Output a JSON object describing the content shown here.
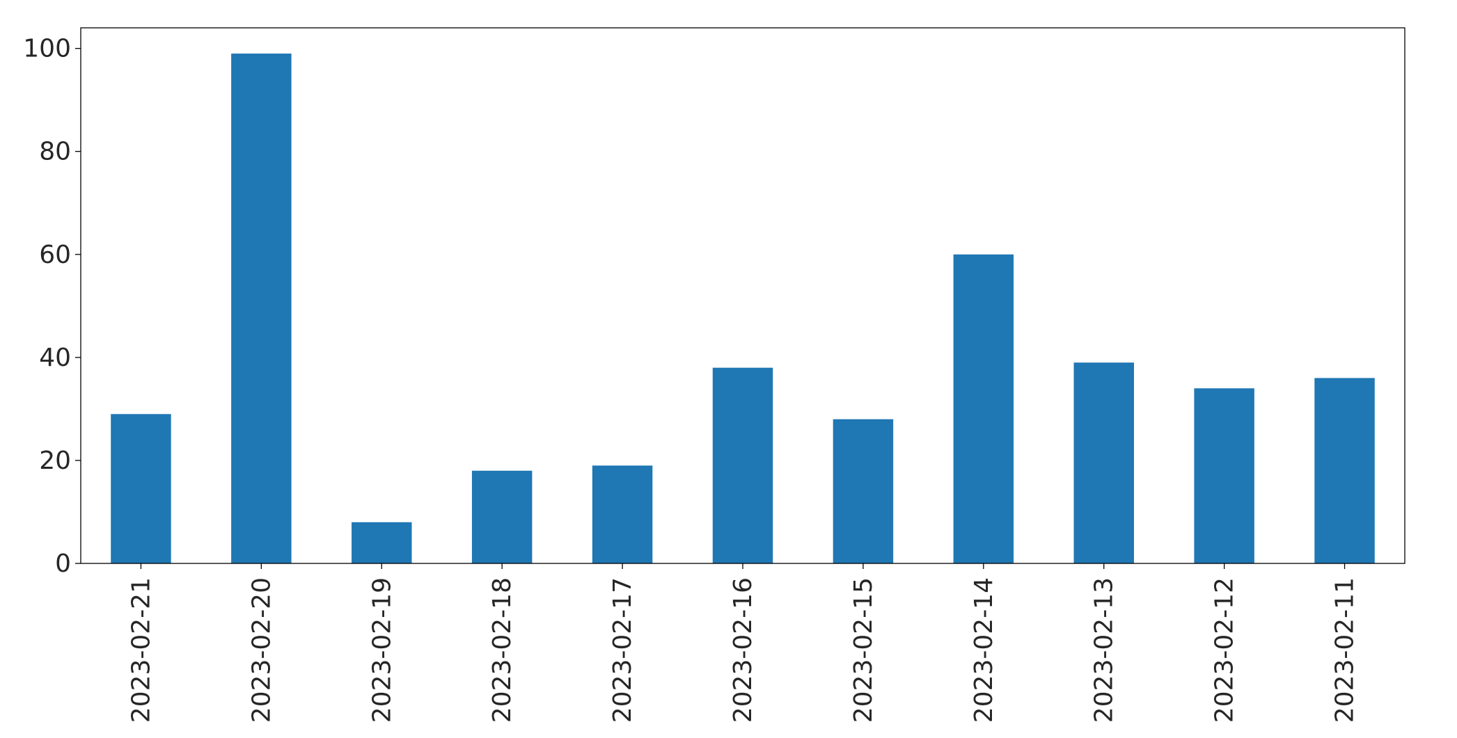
{
  "chart_data": {
    "type": "bar",
    "categories": [
      "2023-02-21",
      "2023-02-20",
      "2023-02-19",
      "2023-02-18",
      "2023-02-17",
      "2023-02-16",
      "2023-02-15",
      "2023-02-14",
      "2023-02-13",
      "2023-02-12",
      "2023-02-11"
    ],
    "values": [
      29,
      99,
      8,
      18,
      19,
      38,
      28,
      60,
      39,
      34,
      36
    ],
    "title": "",
    "xlabel": "",
    "ylabel": "",
    "ylim": [
      0,
      104
    ],
    "yticks": [
      0,
      20,
      40,
      60,
      80,
      100
    ],
    "grid": false,
    "bar_color": "#1f77b4"
  }
}
